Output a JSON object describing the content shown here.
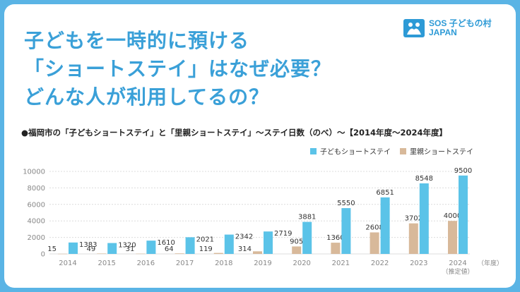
{
  "headline": {
    "line1": "子どもを一時的に預ける",
    "line2": "「ショートステイ」はなぜ必要？",
    "line3": "どんな人が利用してるの？"
  },
  "logo": {
    "line1": "SOS 子どもの村",
    "line2": "JAPAN",
    "icon": "family-logo-icon"
  },
  "colors": {
    "accent": "#3aa0d8",
    "frame": "#5ab4e5",
    "series_a": "#5bc3e8",
    "series_b": "#d8b99a"
  },
  "chart_data": {
    "type": "bar",
    "title": "●福岡市の「子どもショートステイ」と「里親ショートステイ」～ステイ日数（のべ）～【2014年度～2024年度】",
    "categories": [
      "2014",
      "2015",
      "2016",
      "2017",
      "2018",
      "2019",
      "2020",
      "2021",
      "2022",
      "2023",
      "2024"
    ],
    "category_note": "（推定値）",
    "x_unit": "（年度）",
    "ylim": [
      0,
      10000
    ],
    "yticks": [
      0,
      2000,
      4000,
      6000,
      8000,
      10000
    ],
    "grid": true,
    "legend_position": "top-right",
    "series": [
      {
        "name": "里親ショートステイ",
        "values": [
          15,
          49,
          31,
          64,
          119,
          314,
          905,
          1360,
          2608,
          3702,
          4000
        ]
      },
      {
        "name": "子どもショートステイ",
        "values": [
          1383,
          1320,
          1610,
          2021,
          2342,
          2719,
          3881,
          5550,
          6851,
          8548,
          9500
        ]
      }
    ]
  }
}
